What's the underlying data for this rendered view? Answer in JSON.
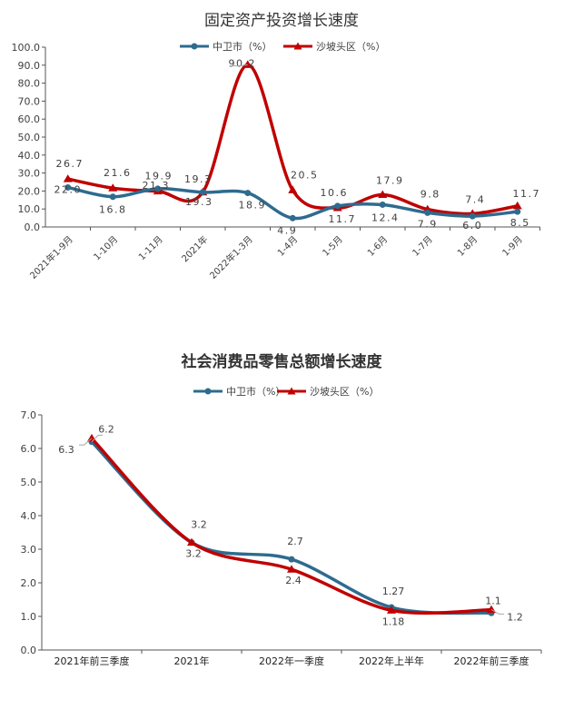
{
  "colors": {
    "zhongwei": "#2e6b8f",
    "shapotou": "#c00000",
    "axis": "#555555",
    "text": "#404040"
  },
  "chart_data": [
    {
      "type": "line",
      "title": "固定资产投资增长速度",
      "categories": [
        "2021年1-9月",
        "1-10月",
        "1-11月",
        "2021年",
        "2022年1-3月",
        "1-4月",
        "1-5月",
        "1-6月",
        "1-7月",
        "1-8月",
        "1-9月"
      ],
      "series": [
        {
          "name": "中卫市（%）",
          "marker": "circle",
          "values": [
            22.0,
            16.8,
            21.3,
            19.3,
            18.9,
            4.9,
            11.7,
            12.4,
            7.9,
            6.0,
            8.5
          ],
          "labels": [
            "22.0",
            "16.8",
            "21.3",
            "19.3",
            "18.9",
            "4.9",
            "11.7",
            "12.4",
            "7.9",
            "6.0",
            "8.5"
          ]
        },
        {
          "name": "沙坡头区（%）",
          "marker": "triangle",
          "values": [
            26.7,
            21.6,
            19.9,
            19.3,
            90.2,
            20.5,
            10.6,
            17.9,
            9.8,
            7.4,
            11.7
          ],
          "labels": [
            "26.7",
            "21.6",
            "19.9",
            "19.3",
            "90.2",
            "20.5",
            "10.6",
            "17.9",
            "9.8",
            "7.4",
            "11.7"
          ]
        }
      ],
      "ylim": [
        0,
        100
      ],
      "yticks": [
        "0.0",
        "10.0",
        "20.0",
        "30.0",
        "40.0",
        "50.0",
        "60.0",
        "70.0",
        "80.0",
        "90.0",
        "100.0"
      ],
      "legend": "top",
      "grid": false
    },
    {
      "type": "line",
      "title": "社会消费品零售总额增长速度",
      "categories": [
        "2021年前三季度",
        "2021年",
        "2022年一季度",
        "2022年上半年",
        "2022年前三季度"
      ],
      "series": [
        {
          "name": "中卫市（%）",
          "marker": "circle",
          "values": [
            6.2,
            3.2,
            2.7,
            1.27,
            1.1
          ],
          "labels": [
            "6.2",
            "3.2",
            "2.7",
            "1.27",
            "1.1"
          ]
        },
        {
          "name": "沙坡头区（%）",
          "marker": "triangle",
          "values": [
            6.3,
            3.2,
            2.4,
            1.18,
            1.2
          ],
          "labels": [
            "6.3",
            "3.2",
            "2.4",
            "1.18",
            "1.2"
          ]
        }
      ],
      "ylim": [
        0,
        7
      ],
      "yticks": [
        "0.0",
        "1.0",
        "2.0",
        "3.0",
        "4.0",
        "5.0",
        "6.0",
        "7.0"
      ],
      "legend": "top",
      "grid": false
    }
  ]
}
